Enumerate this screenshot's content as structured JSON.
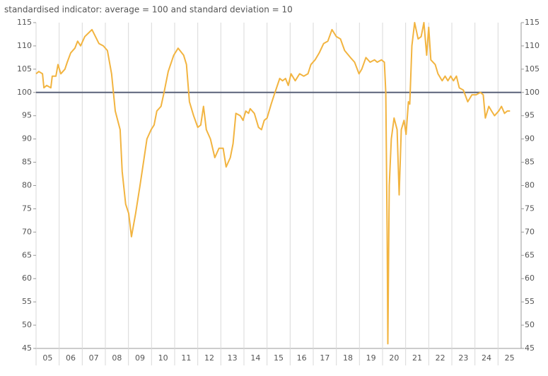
{
  "chart_data": {
    "type": "line",
    "title": "standardised indicator: average = 100 and standard deviation = 10",
    "xlim": [
      2005,
      2026
    ],
    "xticks": [
      {
        "value": 2005.5,
        "label": "05"
      },
      {
        "value": 2006.5,
        "label": "06"
      },
      {
        "value": 2007.5,
        "label": "07"
      },
      {
        "value": 2008.5,
        "label": "08"
      },
      {
        "value": 2009.5,
        "label": "09"
      },
      {
        "value": 2010.5,
        "label": "10"
      },
      {
        "value": 2011.5,
        "label": "11"
      },
      {
        "value": 2012.5,
        "label": "12"
      },
      {
        "value": 2013.5,
        "label": "13"
      },
      {
        "value": 2014.5,
        "label": "14"
      },
      {
        "value": 2015.5,
        "label": "15"
      },
      {
        "value": 2016.5,
        "label": "16"
      },
      {
        "value": 2017.5,
        "label": "17"
      },
      {
        "value": 2018.5,
        "label": "18"
      },
      {
        "value": 2019.5,
        "label": "19"
      },
      {
        "value": 2020.5,
        "label": "20"
      },
      {
        "value": 2021.5,
        "label": "21"
      },
      {
        "value": 2022.5,
        "label": "22"
      },
      {
        "value": 2023.5,
        "label": "23"
      },
      {
        "value": 2024.5,
        "label": "24"
      },
      {
        "value": 2025.5,
        "label": "25"
      }
    ],
    "ylim": [
      45,
      115
    ],
    "yticks": [
      45,
      50,
      55,
      60,
      65,
      70,
      75,
      80,
      85,
      90,
      95,
      100,
      105,
      110,
      115
    ],
    "y2lim": [
      45,
      115
    ],
    "y2ticks": [
      45,
      50,
      55,
      60,
      65,
      70,
      75,
      80,
      85,
      90,
      95,
      100,
      105,
      110,
      115
    ],
    "reference_line": 100,
    "reference_color": "#5a6279",
    "x_grid": true,
    "series": [
      {
        "color": "#f2b440",
        "x": [
          2005.0,
          2005.12,
          2005.28,
          2005.34,
          2005.46,
          2005.64,
          2005.7,
          2005.86,
          2005.95,
          2006.07,
          2006.25,
          2006.35,
          2006.5,
          2006.68,
          2006.8,
          2006.93,
          2007.11,
          2007.42,
          2007.72,
          2007.91,
          2008.09,
          2008.27,
          2008.43,
          2008.64,
          2008.73,
          2008.88,
          2009.01,
          2009.13,
          2009.31,
          2009.5,
          2009.68,
          2009.8,
          2009.98,
          2010.11,
          2010.23,
          2010.41,
          2010.54,
          2010.72,
          2010.96,
          2011.15,
          2011.39,
          2011.51,
          2011.64,
          2011.82,
          2012.0,
          2012.13,
          2012.25,
          2012.37,
          2012.55,
          2012.74,
          2012.92,
          2013.1,
          2013.23,
          2013.41,
          2013.53,
          2013.65,
          2013.84,
          2013.96,
          2014.08,
          2014.2,
          2014.27,
          2014.45,
          2014.63,
          2014.76,
          2014.88,
          2015.0,
          2015.18,
          2015.31,
          2015.55,
          2015.67,
          2015.8,
          2015.92,
          2016.04,
          2016.22,
          2016.41,
          2016.59,
          2016.77,
          2016.9,
          2017.08,
          2017.26,
          2017.45,
          2017.63,
          2017.81,
          2018.0,
          2018.18,
          2018.36,
          2018.61,
          2018.79,
          2018.98,
          2019.1,
          2019.28,
          2019.46,
          2019.65,
          2019.77,
          2019.95,
          2020.08,
          2020.14,
          2020.2,
          2020.23,
          2020.29,
          2020.38,
          2020.5,
          2020.63,
          2020.72,
          2020.81,
          2020.93,
          2021.02,
          2021.12,
          2021.18,
          2021.27,
          2021.39,
          2021.54,
          2021.67,
          2021.79,
          2021.91,
          2022.0,
          2022.09,
          2022.28,
          2022.4,
          2022.58,
          2022.71,
          2022.83,
          2022.95,
          2023.07,
          2023.2,
          2023.32,
          2023.5,
          2023.69,
          2023.87,
          2024.05,
          2024.24,
          2024.36,
          2024.45,
          2024.6,
          2024.72,
          2024.85,
          2025.03,
          2025.15,
          2025.28,
          2025.4,
          2025.52
        ],
        "values": [
          104,
          104.5,
          104,
          101,
          101.5,
          101,
          103.5,
          103.5,
          106,
          104,
          105,
          106.5,
          108.5,
          109.5,
          111,
          110,
          112,
          113.5,
          110.5,
          110,
          109,
          104,
          96,
          92,
          83,
          76,
          74,
          69,
          74,
          80,
          86,
          90,
          92,
          93,
          96,
          97,
          100,
          104.5,
          108,
          109.5,
          108,
          106,
          98,
          95,
          92.5,
          93,
          97,
          92,
          90,
          86,
          88,
          88,
          84,
          86,
          89,
          95.5,
          95,
          94,
          96,
          95.5,
          96.5,
          95.5,
          92.5,
          92,
          94,
          94.5,
          97.5,
          99.5,
          103,
          102.5,
          103,
          101.5,
          104,
          102.5,
          104,
          103.5,
          104,
          106,
          107,
          108.5,
          110.5,
          111,
          113.5,
          112,
          111.5,
          109,
          107.5,
          106.5,
          104,
          105,
          107.5,
          106.5,
          107,
          106.5,
          107,
          106.5,
          100,
          70,
          46,
          80,
          90,
          94.5,
          92,
          78,
          92,
          94,
          91,
          98,
          97.5,
          110,
          115,
          111.5,
          112,
          115,
          108,
          114,
          107,
          106,
          104,
          102.5,
          103.5,
          102.5,
          103.5,
          102.5,
          103.5,
          101,
          100.5,
          98,
          99.5,
          99.5,
          100,
          99.5,
          94.5,
          97,
          96,
          95,
          96,
          97,
          95.5,
          96,
          96
        ]
      }
    ]
  }
}
